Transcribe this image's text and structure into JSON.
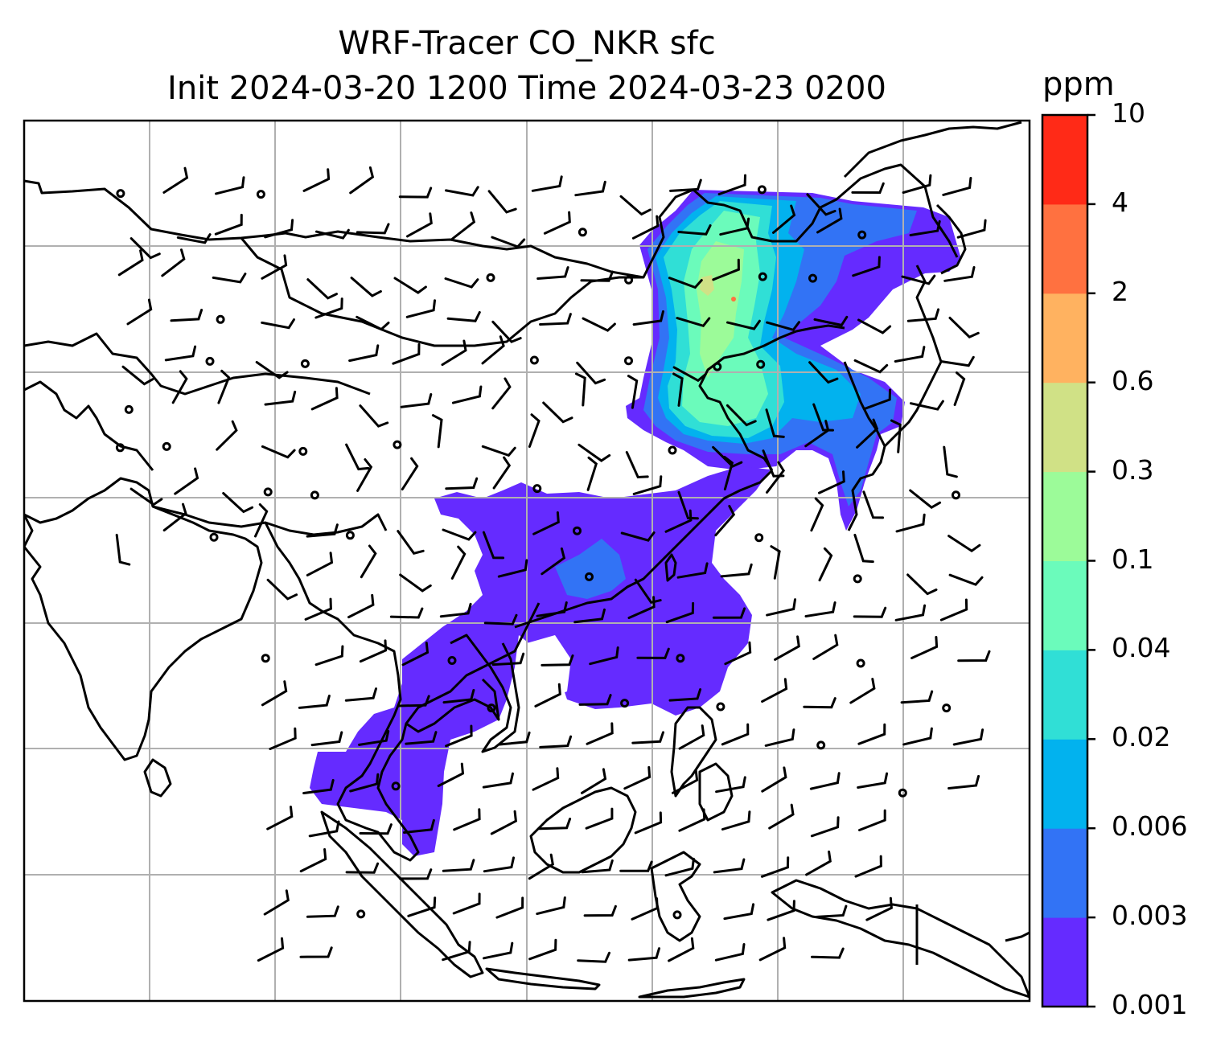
{
  "title": {
    "line1": "WRF-Tracer CO_NKR sfc",
    "line2": "Init 2024-03-20 1200 Time 2024-03-23 0200"
  },
  "colorbar": {
    "unit": "ppm",
    "ticks": [
      "0.001",
      "0.003",
      "0.006",
      "0.02",
      "0.04",
      "0.1",
      "0.3",
      "0.6",
      "2",
      "4",
      "10"
    ],
    "colors": [
      "#652bff",
      "#3273f5",
      "#02b2ee",
      "#30dfd6",
      "#6bfbbb",
      "#9cfb99",
      "#d0e186",
      "#ffb260",
      "#ff7140",
      "#ff2a17"
    ]
  },
  "map": {
    "gridlines": true,
    "wind_barbs": true,
    "tracer_field": "CO_NKR"
  }
}
